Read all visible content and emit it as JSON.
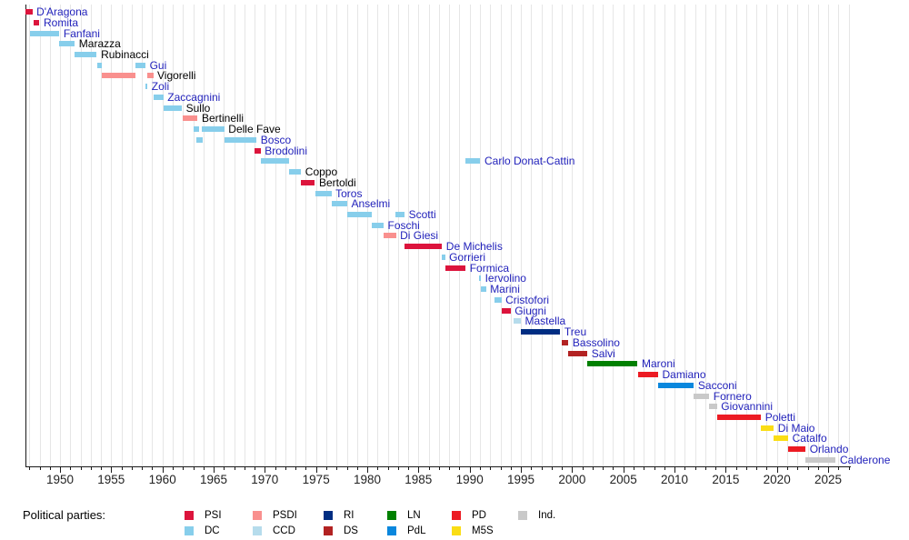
{
  "chart_data": {
    "type": "timeline",
    "title": "",
    "x_axis": {
      "unit": "year",
      "range_start": 1946.65,
      "range_end": 2027,
      "tick_every": 1,
      "label_every": 5,
      "tick_labels": [
        "1950",
        "1955",
        "1960",
        "1965",
        "1970",
        "1975",
        "1980",
        "1985",
        "1990",
        "1995",
        "2000",
        "2005",
        "2010",
        "2015",
        "2020",
        "2025"
      ],
      "grid": true
    },
    "parties": [
      {
        "label": "PSI",
        "color": "#dc143c"
      },
      {
        "label": "PSDI",
        "color": "#f9908e"
      },
      {
        "label": "RI",
        "color": "#002d82"
      },
      {
        "label": "LN",
        "color": "#008000"
      },
      {
        "label": "PD",
        "color": "#ec1b23"
      },
      {
        "label": "Ind.",
        "color": "#c9c9c9"
      },
      {
        "label": "DC",
        "color": "#87ceeb"
      },
      {
        "label": "CCD",
        "color": "#b6dcec"
      },
      {
        "label": "DS",
        "color": "#b22222"
      },
      {
        "label": "PdL",
        "color": "#0a87dd"
      },
      {
        "label": "M5S",
        "color": "#fadd14"
      }
    ],
    "legend": {
      "title": "Political parties:",
      "row1": [
        "PSI",
        "PSDI",
        "RI",
        "LN",
        "PD",
        "Ind."
      ],
      "row2": [
        "DC",
        "CCD",
        "DS",
        "PdL",
        "M5S"
      ]
    },
    "ministers": [
      {
        "name": "D'Aragona",
        "party": "PSI",
        "is_link": true,
        "terms": [
          [
            1946.6,
            1947.3
          ]
        ]
      },
      {
        "name": "Romita",
        "party": "PSI",
        "is_link": true,
        "terms": [
          [
            1947.4,
            1948.0
          ]
        ]
      },
      {
        "name": "Fanfani",
        "party": "DC",
        "is_link": true,
        "terms": [
          [
            1947.05,
            1949.95
          ]
        ]
      },
      {
        "name": "Marazza",
        "party": "DC",
        "is_link": false,
        "terms": [
          [
            1949.95,
            1951.45
          ]
        ]
      },
      {
        "name": "Rubinacci",
        "party": "DC",
        "is_link": false,
        "terms": [
          [
            1951.45,
            1953.6
          ]
        ]
      },
      {
        "name": "Gui",
        "party": "DC",
        "is_link": true,
        "terms": [
          [
            1953.6,
            1954.05
          ],
          [
            1957.4,
            1958.35
          ]
        ]
      },
      {
        "name": "Vigorelli",
        "party": "PSDI",
        "is_link": false,
        "terms": [
          [
            1954.05,
            1957.4
          ],
          [
            1958.5,
            1959.1
          ]
        ]
      },
      {
        "name": "Zoli",
        "party": "DC",
        "is_link": true,
        "terms": [
          [
            1958.35,
            1958.55
          ]
        ]
      },
      {
        "name": "Zaccagnini",
        "party": "DC",
        "is_link": true,
        "terms": [
          [
            1959.1,
            1960.1
          ]
        ]
      },
      {
        "name": "Sullo",
        "party": "DC",
        "is_link": false,
        "terms": [
          [
            1960.1,
            1961.9
          ]
        ]
      },
      {
        "name": "Bertinelli",
        "party": "PSDI",
        "is_link": false,
        "terms": [
          [
            1962.0,
            1963.45
          ]
        ]
      },
      {
        "name": "Delle Fave",
        "party": "DC",
        "is_link": false,
        "terms": [
          [
            1963.0,
            1963.55
          ],
          [
            1963.85,
            1966.05
          ]
        ]
      },
      {
        "name": "Bosco",
        "party": "DC",
        "is_link": true,
        "terms": [
          [
            1963.3,
            1963.95
          ],
          [
            1966.05,
            1969.2
          ]
        ]
      },
      {
        "name": "Brodolini",
        "party": "PSI",
        "is_link": true,
        "terms": [
          [
            1969.0,
            1969.6
          ]
        ]
      },
      {
        "name": "Carlo Donat-Cattin",
        "party": "DC",
        "is_link": true,
        "terms": [
          [
            1969.6,
            1972.4
          ],
          [
            1989.6,
            1991.05
          ]
        ]
      },
      {
        "name": "Coppo",
        "party": "DC",
        "is_link": false,
        "terms": [
          [
            1972.4,
            1973.55
          ]
        ]
      },
      {
        "name": "Bertoldi",
        "party": "PSI",
        "is_link": false,
        "terms": [
          [
            1973.55,
            1974.9
          ]
        ]
      },
      {
        "name": "Toros",
        "party": "DC",
        "is_link": true,
        "terms": [
          [
            1974.9,
            1976.5
          ]
        ]
      },
      {
        "name": "Anselmi",
        "party": "DC",
        "is_link": true,
        "terms": [
          [
            1976.5,
            1978.05
          ]
        ]
      },
      {
        "name": "Scotti",
        "party": "DC",
        "is_link": true,
        "terms": [
          [
            1978.05,
            1980.4
          ],
          [
            1982.75,
            1983.65
          ]
        ]
      },
      {
        "name": "Foschi",
        "party": "DC",
        "is_link": true,
        "terms": [
          [
            1980.4,
            1981.6
          ]
        ]
      },
      {
        "name": "Di Giesi",
        "party": "PSDI",
        "is_link": true,
        "terms": [
          [
            1981.6,
            1982.8
          ]
        ]
      },
      {
        "name": "De Michelis",
        "party": "PSI",
        "is_link": true,
        "terms": [
          [
            1983.65,
            1987.3
          ]
        ]
      },
      {
        "name": "Gorrieri",
        "party": "DC",
        "is_link": true,
        "terms": [
          [
            1987.3,
            1987.6
          ]
        ]
      },
      {
        "name": "Formica",
        "party": "PSI",
        "is_link": true,
        "terms": [
          [
            1987.6,
            1989.6
          ]
        ]
      },
      {
        "name": "Iervolino",
        "party": "DC",
        "is_link": true,
        "terms": [
          [
            1990.9,
            1991.1
          ]
        ]
      },
      {
        "name": "Marini",
        "party": "DC",
        "is_link": true,
        "terms": [
          [
            1991.1,
            1991.6
          ]
        ]
      },
      {
        "name": "Cristofori",
        "party": "DC",
        "is_link": true,
        "terms": [
          [
            1992.4,
            1993.1
          ]
        ]
      },
      {
        "name": "Giugni",
        "party": "PSI",
        "is_link": true,
        "terms": [
          [
            1993.1,
            1994.0
          ]
        ]
      },
      {
        "name": "Mastella",
        "party": "CCD",
        "is_link": true,
        "terms": [
          [
            1994.3,
            1995.0
          ]
        ]
      },
      {
        "name": "Treu",
        "party": "RI",
        "is_link": true,
        "terms": [
          [
            1995.0,
            1998.85
          ]
        ]
      },
      {
        "name": "Bassolino",
        "party": "DS",
        "is_link": true,
        "terms": [
          [
            1999.0,
            1999.65
          ]
        ]
      },
      {
        "name": "Salvi",
        "party": "DS",
        "is_link": true,
        "terms": [
          [
            1999.65,
            2001.5
          ]
        ]
      },
      {
        "name": "Maroni",
        "party": "LN",
        "is_link": true,
        "terms": [
          [
            2001.5,
            2006.4
          ]
        ]
      },
      {
        "name": "Damiano",
        "party": "PD",
        "is_link": true,
        "terms": [
          [
            2006.4,
            2008.4
          ]
        ]
      },
      {
        "name": "Sacconi",
        "party": "PdL",
        "is_link": true,
        "terms": [
          [
            2008.4,
            2011.9
          ]
        ]
      },
      {
        "name": "Fornero",
        "party": "Ind.",
        "is_link": true,
        "terms": [
          [
            2011.9,
            2013.4
          ]
        ]
      },
      {
        "name": "Giovannini",
        "party": "Ind.",
        "is_link": true,
        "terms": [
          [
            2013.4,
            2014.15
          ]
        ]
      },
      {
        "name": "Poletti",
        "party": "PD",
        "is_link": true,
        "terms": [
          [
            2014.15,
            2018.45
          ]
        ]
      },
      {
        "name": "Di Maio",
        "party": "M5S",
        "is_link": true,
        "terms": [
          [
            2018.45,
            2019.7
          ]
        ]
      },
      {
        "name": "Catalfo",
        "party": "M5S",
        "is_link": true,
        "terms": [
          [
            2019.7,
            2021.1
          ]
        ]
      },
      {
        "name": "Orlando",
        "party": "PD",
        "is_link": true,
        "terms": [
          [
            2021.1,
            2022.8
          ]
        ]
      },
      {
        "name": "Calderone",
        "party": "Ind.",
        "is_link": true,
        "terms": [
          [
            2022.8,
            2025.75
          ]
        ]
      }
    ]
  }
}
